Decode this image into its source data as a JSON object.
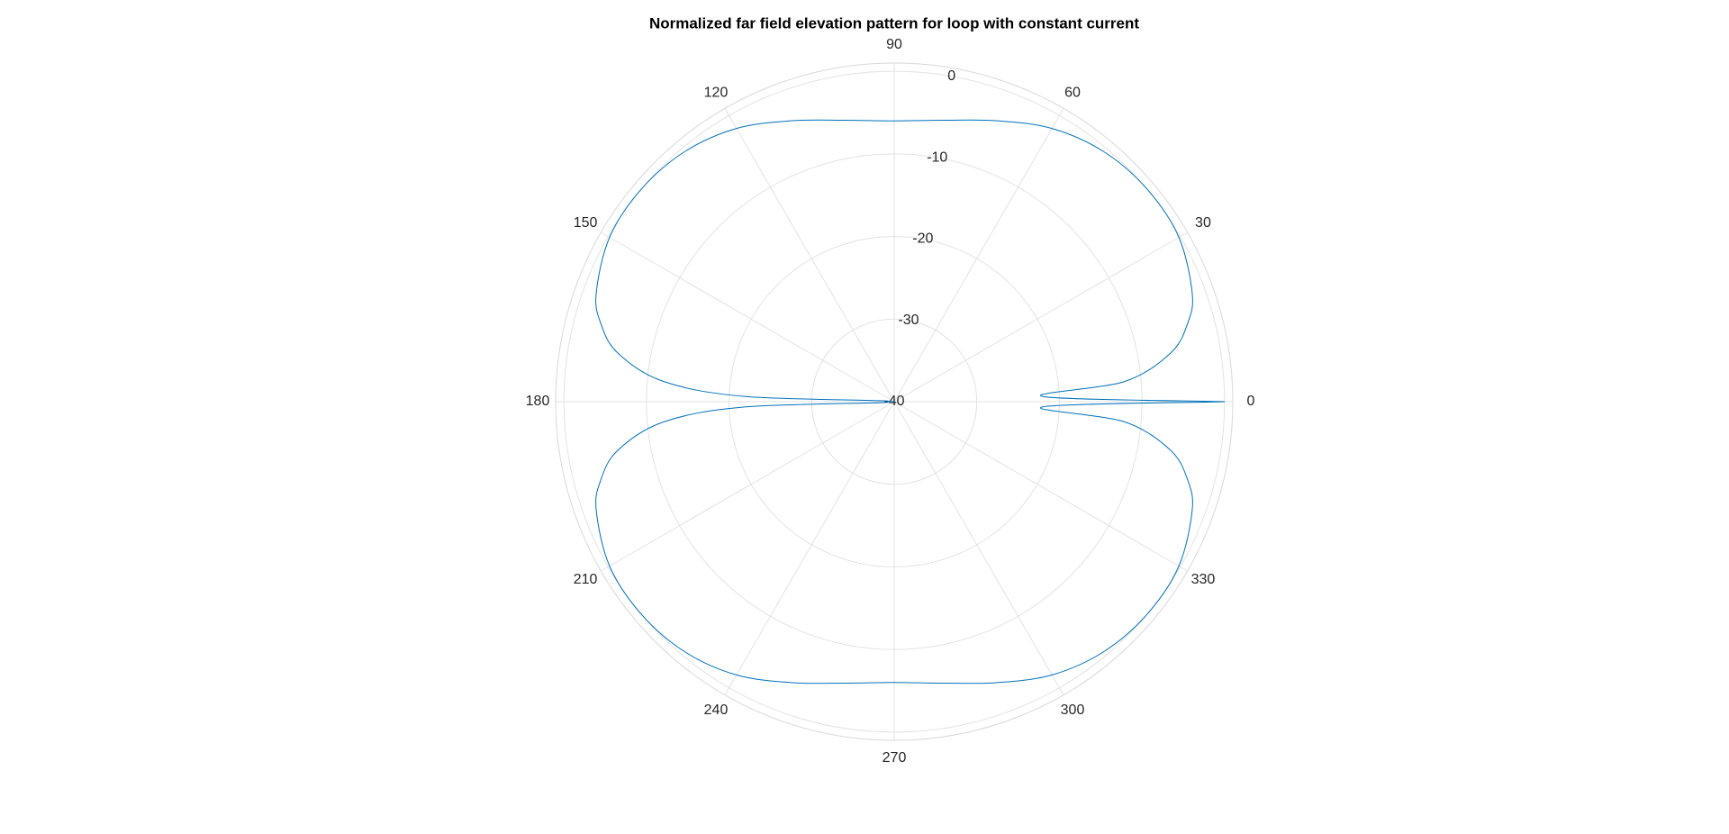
{
  "chart_data": {
    "type": "polar",
    "title": "Normalized far field elevation pattern for loop with constant current",
    "x": [
      0,
      2,
      5,
      10,
      15,
      20,
      30,
      40,
      50,
      60,
      70,
      80,
      90,
      100,
      110,
      120,
      130,
      140,
      150,
      160,
      165,
      170,
      175,
      178,
      180,
      182,
      185,
      190,
      195,
      200,
      210,
      220,
      230,
      240,
      250,
      260,
      270,
      280,
      290,
      300,
      310,
      320,
      330,
      340,
      345,
      350,
      355,
      358,
      360
    ],
    "values": [
      0,
      -22,
      -12,
      -6,
      -3.2,
      -1.6,
      -0.2,
      0,
      -0.5,
      -1.8,
      -3.8,
      -5.4,
      -6,
      -5.4,
      -3.8,
      -1.8,
      -0.5,
      0,
      -0.2,
      -1.6,
      -3.2,
      -6,
      -12,
      -22,
      -40,
      -22,
      -12,
      -6,
      -3.2,
      -1.6,
      -0.2,
      0,
      -0.5,
      -1.8,
      -3.8,
      -5.4,
      -6,
      -5.4,
      -3.8,
      -1.8,
      -0.5,
      0,
      -0.2,
      -1.6,
      -3.2,
      -6,
      -12,
      -22,
      0
    ],
    "color": "#0072bd",
    "rlim": [
      -40,
      1
    ],
    "rticks": [
      -40,
      -30,
      -20,
      -10,
      0
    ],
    "thetaticks": [
      0,
      30,
      60,
      90,
      120,
      150,
      180,
      210,
      240,
      270,
      300,
      330
    ],
    "grid": true
  }
}
